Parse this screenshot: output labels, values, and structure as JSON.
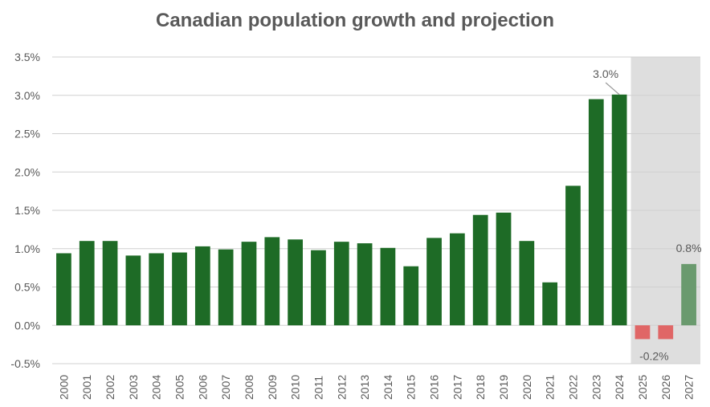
{
  "chart_data": {
    "type": "bar",
    "title": "Canadian population growth and projection",
    "xlabel": "",
    "ylabel": "",
    "ylim": [
      -0.5,
      3.5
    ],
    "y_ticks": [
      "3.5%",
      "3.0%",
      "2.5%",
      "2.0%",
      "1.5%",
      "1.0%",
      "0.5%",
      "0.0%",
      "-0.5%"
    ],
    "y_tick_values": [
      3.5,
      3.0,
      2.5,
      2.0,
      1.5,
      1.0,
      0.5,
      0.0,
      -0.5
    ],
    "grid": true,
    "categories": [
      "2000",
      "2001",
      "2002",
      "2003",
      "2004",
      "2005",
      "2006",
      "2007",
      "2008",
      "2009",
      "2010",
      "2011",
      "2012",
      "2013",
      "2014",
      "2015",
      "2016",
      "2017",
      "2018",
      "2019",
      "2020",
      "2021",
      "2022",
      "2023",
      "2024",
      "2025",
      "2026",
      "2027"
    ],
    "values": [
      0.94,
      1.1,
      1.1,
      0.91,
      0.94,
      0.95,
      1.03,
      0.99,
      1.09,
      1.15,
      1.12,
      0.98,
      1.09,
      1.07,
      1.01,
      0.77,
      1.14,
      1.2,
      1.44,
      1.47,
      1.1,
      0.56,
      1.82,
      2.95,
      3.01,
      -0.18,
      -0.18,
      0.8
    ],
    "bar_colors": {
      "historical": "#1e6b26",
      "projection_negative": "#e06666",
      "projection_positive": "#6a9a6e"
    },
    "projection_categories": [
      "2025",
      "2026",
      "2027"
    ],
    "projection_shade_color": "#dedede",
    "annotations": [
      {
        "category": "2024",
        "text": "3.0%"
      },
      {
        "category": "2027",
        "text": "0.8%"
      },
      {
        "category": "2026",
        "text": "-0.2%"
      }
    ]
  }
}
